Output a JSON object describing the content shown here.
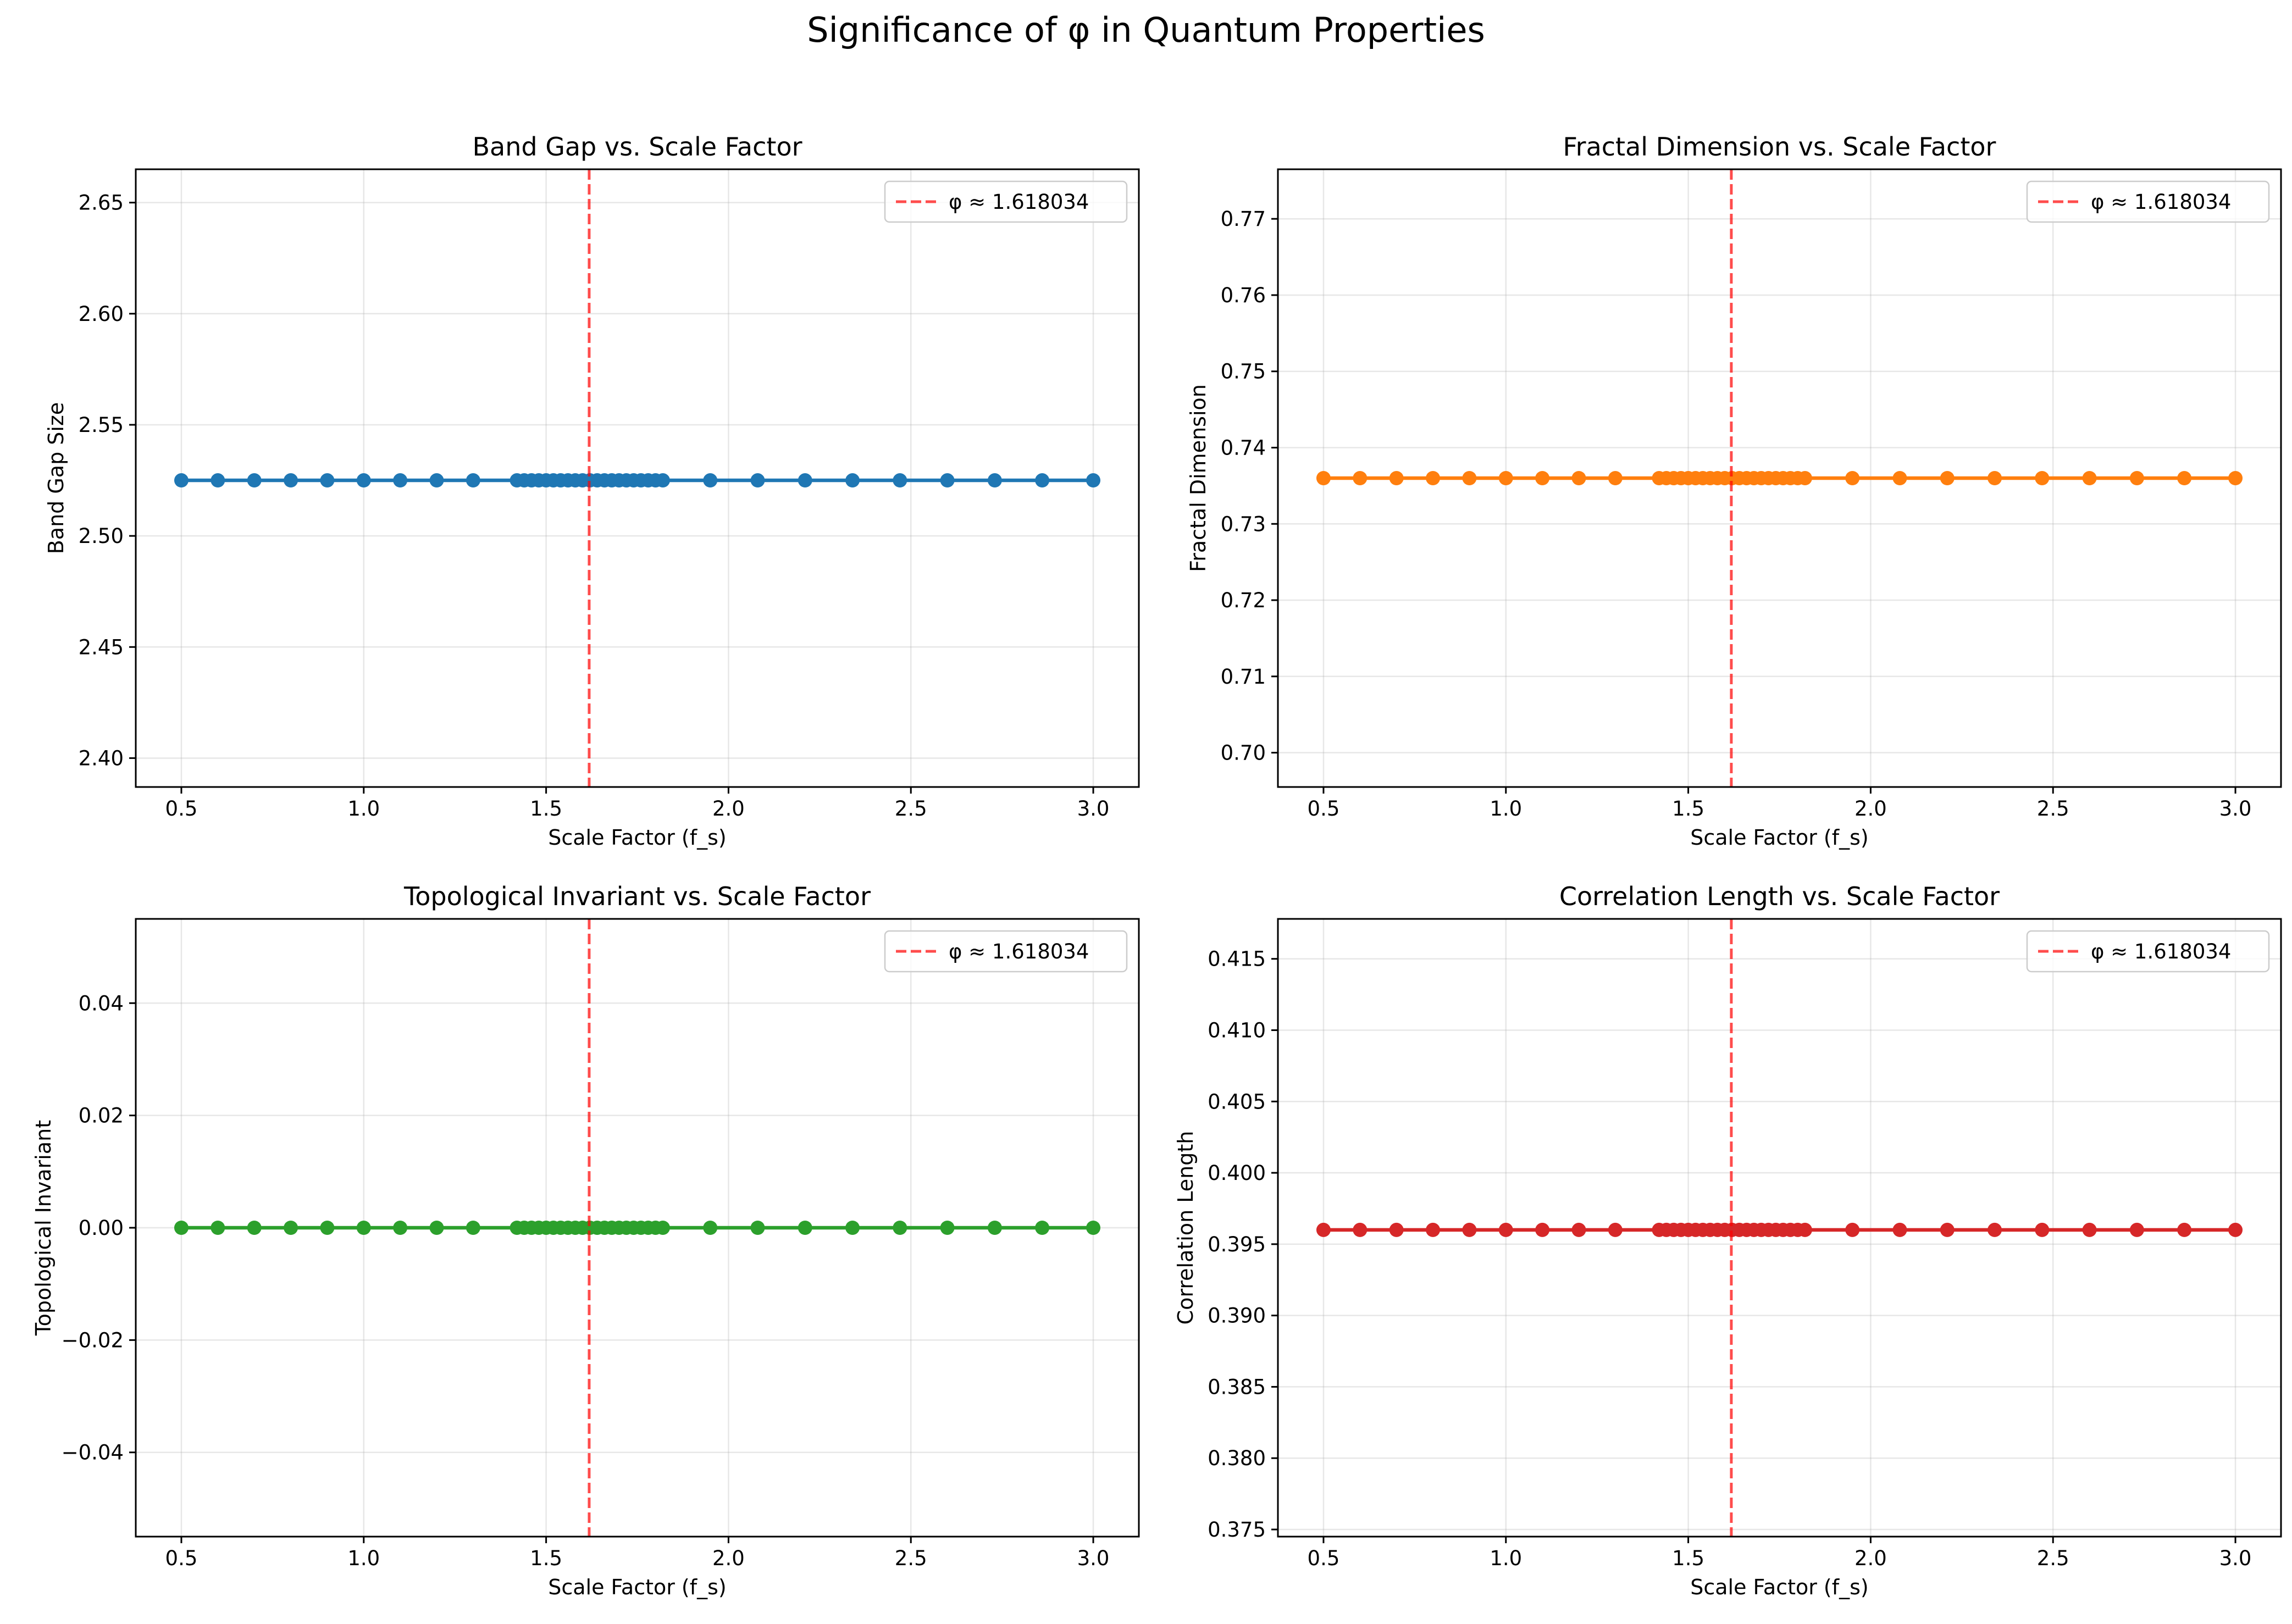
{
  "figure": {
    "suptitle": "Significance of φ in Quantum Properties"
  },
  "chart_data": [
    {
      "type": "line",
      "title": "Band Gap vs. Scale Factor",
      "xlabel": "Scale Factor (f_s)",
      "ylabel": "Band Gap Size",
      "xlim": [
        0.375,
        3.125
      ],
      "ylim": [
        2.387,
        2.665
      ],
      "xticks": [
        0.5,
        1.0,
        1.5,
        2.0,
        2.5,
        3.0
      ],
      "xtick_labels": [
        "0.5",
        "1.0",
        "1.5",
        "2.0",
        "2.5",
        "3.0"
      ],
      "yticks": [
        2.4,
        2.45,
        2.5,
        2.55,
        2.6,
        2.65
      ],
      "ytick_labels": [
        "2.40",
        "2.45",
        "2.50",
        "2.55",
        "2.60",
        "2.65"
      ],
      "color": "#1f77b4",
      "x": [
        0.5,
        0.6,
        0.7,
        0.8,
        0.9,
        1.0,
        1.1,
        1.2,
        1.3,
        1.42,
        1.44,
        1.46,
        1.48,
        1.5,
        1.52,
        1.54,
        1.56,
        1.58,
        1.6,
        1.62,
        1.64,
        1.66,
        1.68,
        1.7,
        1.72,
        1.74,
        1.76,
        1.78,
        1.8,
        1.82,
        1.95,
        2.08,
        2.21,
        2.34,
        2.47,
        2.6,
        2.73,
        2.86,
        3.0
      ],
      "y_constant": 2.525,
      "phi_line": 1.618034,
      "legend": [
        "φ ≈ 1.618034"
      ],
      "legend_loc": "upper right",
      "grid": true
    },
    {
      "type": "line",
      "title": "Fractal Dimension vs. Scale Factor",
      "xlabel": "Scale Factor (f_s)",
      "ylabel": "Fractal Dimension",
      "xlim": [
        0.375,
        3.125
      ],
      "ylim": [
        0.6955,
        0.7765
      ],
      "xticks": [
        0.5,
        1.0,
        1.5,
        2.0,
        2.5,
        3.0
      ],
      "xtick_labels": [
        "0.5",
        "1.0",
        "1.5",
        "2.0",
        "2.5",
        "3.0"
      ],
      "yticks": [
        0.7,
        0.71,
        0.72,
        0.73,
        0.74,
        0.75,
        0.76,
        0.77
      ],
      "ytick_labels": [
        "0.70",
        "0.71",
        "0.72",
        "0.73",
        "0.74",
        "0.75",
        "0.76",
        "0.77"
      ],
      "color": "#ff7f0e",
      "x": [
        0.5,
        0.6,
        0.7,
        0.8,
        0.9,
        1.0,
        1.1,
        1.2,
        1.3,
        1.42,
        1.44,
        1.46,
        1.48,
        1.5,
        1.52,
        1.54,
        1.56,
        1.58,
        1.6,
        1.62,
        1.64,
        1.66,
        1.68,
        1.7,
        1.72,
        1.74,
        1.76,
        1.78,
        1.8,
        1.82,
        1.95,
        2.08,
        2.21,
        2.34,
        2.47,
        2.6,
        2.73,
        2.86,
        3.0
      ],
      "y_constant": 0.736,
      "phi_line": 1.618034,
      "legend": [
        "φ ≈ 1.618034"
      ],
      "legend_loc": "upper right",
      "grid": true
    },
    {
      "type": "line",
      "title": "Topological Invariant vs. Scale Factor",
      "xlabel": "Scale Factor (f_s)",
      "ylabel": "Topological Invariant",
      "xlim": [
        0.375,
        3.125
      ],
      "ylim": [
        -0.055,
        0.055
      ],
      "xticks": [
        0.5,
        1.0,
        1.5,
        2.0,
        2.5,
        3.0
      ],
      "xtick_labels": [
        "0.5",
        "1.0",
        "1.5",
        "2.0",
        "2.5",
        "3.0"
      ],
      "yticks": [
        -0.04,
        -0.02,
        0.0,
        0.02,
        0.04
      ],
      "ytick_labels": [
        "−0.04",
        "−0.02",
        "0.00",
        "0.02",
        "0.04"
      ],
      "color": "#2ca02c",
      "x": [
        0.5,
        0.6,
        0.7,
        0.8,
        0.9,
        1.0,
        1.1,
        1.2,
        1.3,
        1.42,
        1.44,
        1.46,
        1.48,
        1.5,
        1.52,
        1.54,
        1.56,
        1.58,
        1.6,
        1.62,
        1.64,
        1.66,
        1.68,
        1.7,
        1.72,
        1.74,
        1.76,
        1.78,
        1.8,
        1.82,
        1.95,
        2.08,
        2.21,
        2.34,
        2.47,
        2.6,
        2.73,
        2.86,
        3.0
      ],
      "y_constant": 0.0,
      "phi_line": 1.618034,
      "legend": [
        "φ ≈ 1.618034"
      ],
      "legend_loc": "upper right",
      "grid": true
    },
    {
      "type": "line",
      "title": "Correlation Length vs. Scale Factor",
      "xlabel": "Scale Factor (f_s)",
      "ylabel": "Correlation Length",
      "xlim": [
        0.375,
        3.125
      ],
      "ylim": [
        0.3745,
        0.4178
      ],
      "xticks": [
        0.5,
        1.0,
        1.5,
        2.0,
        2.5,
        3.0
      ],
      "xtick_labels": [
        "0.5",
        "1.0",
        "1.5",
        "2.0",
        "2.5",
        "3.0"
      ],
      "yticks": [
        0.375,
        0.38,
        0.385,
        0.39,
        0.395,
        0.4,
        0.405,
        0.41,
        0.415
      ],
      "ytick_labels": [
        "0.375",
        "0.380",
        "0.385",
        "0.390",
        "0.395",
        "0.400",
        "0.405",
        "0.410",
        "0.415"
      ],
      "color": "#d62728",
      "x": [
        0.5,
        0.6,
        0.7,
        0.8,
        0.9,
        1.0,
        1.1,
        1.2,
        1.3,
        1.42,
        1.44,
        1.46,
        1.48,
        1.5,
        1.52,
        1.54,
        1.56,
        1.58,
        1.6,
        1.62,
        1.64,
        1.66,
        1.68,
        1.7,
        1.72,
        1.74,
        1.76,
        1.78,
        1.8,
        1.82,
        1.95,
        2.08,
        2.21,
        2.34,
        2.47,
        2.6,
        2.73,
        2.86,
        3.0
      ],
      "y_constant": 0.396,
      "phi_line": 1.618034,
      "legend": [
        "φ ≈ 1.618034"
      ],
      "legend_loc": "upper right",
      "grid": true
    }
  ]
}
